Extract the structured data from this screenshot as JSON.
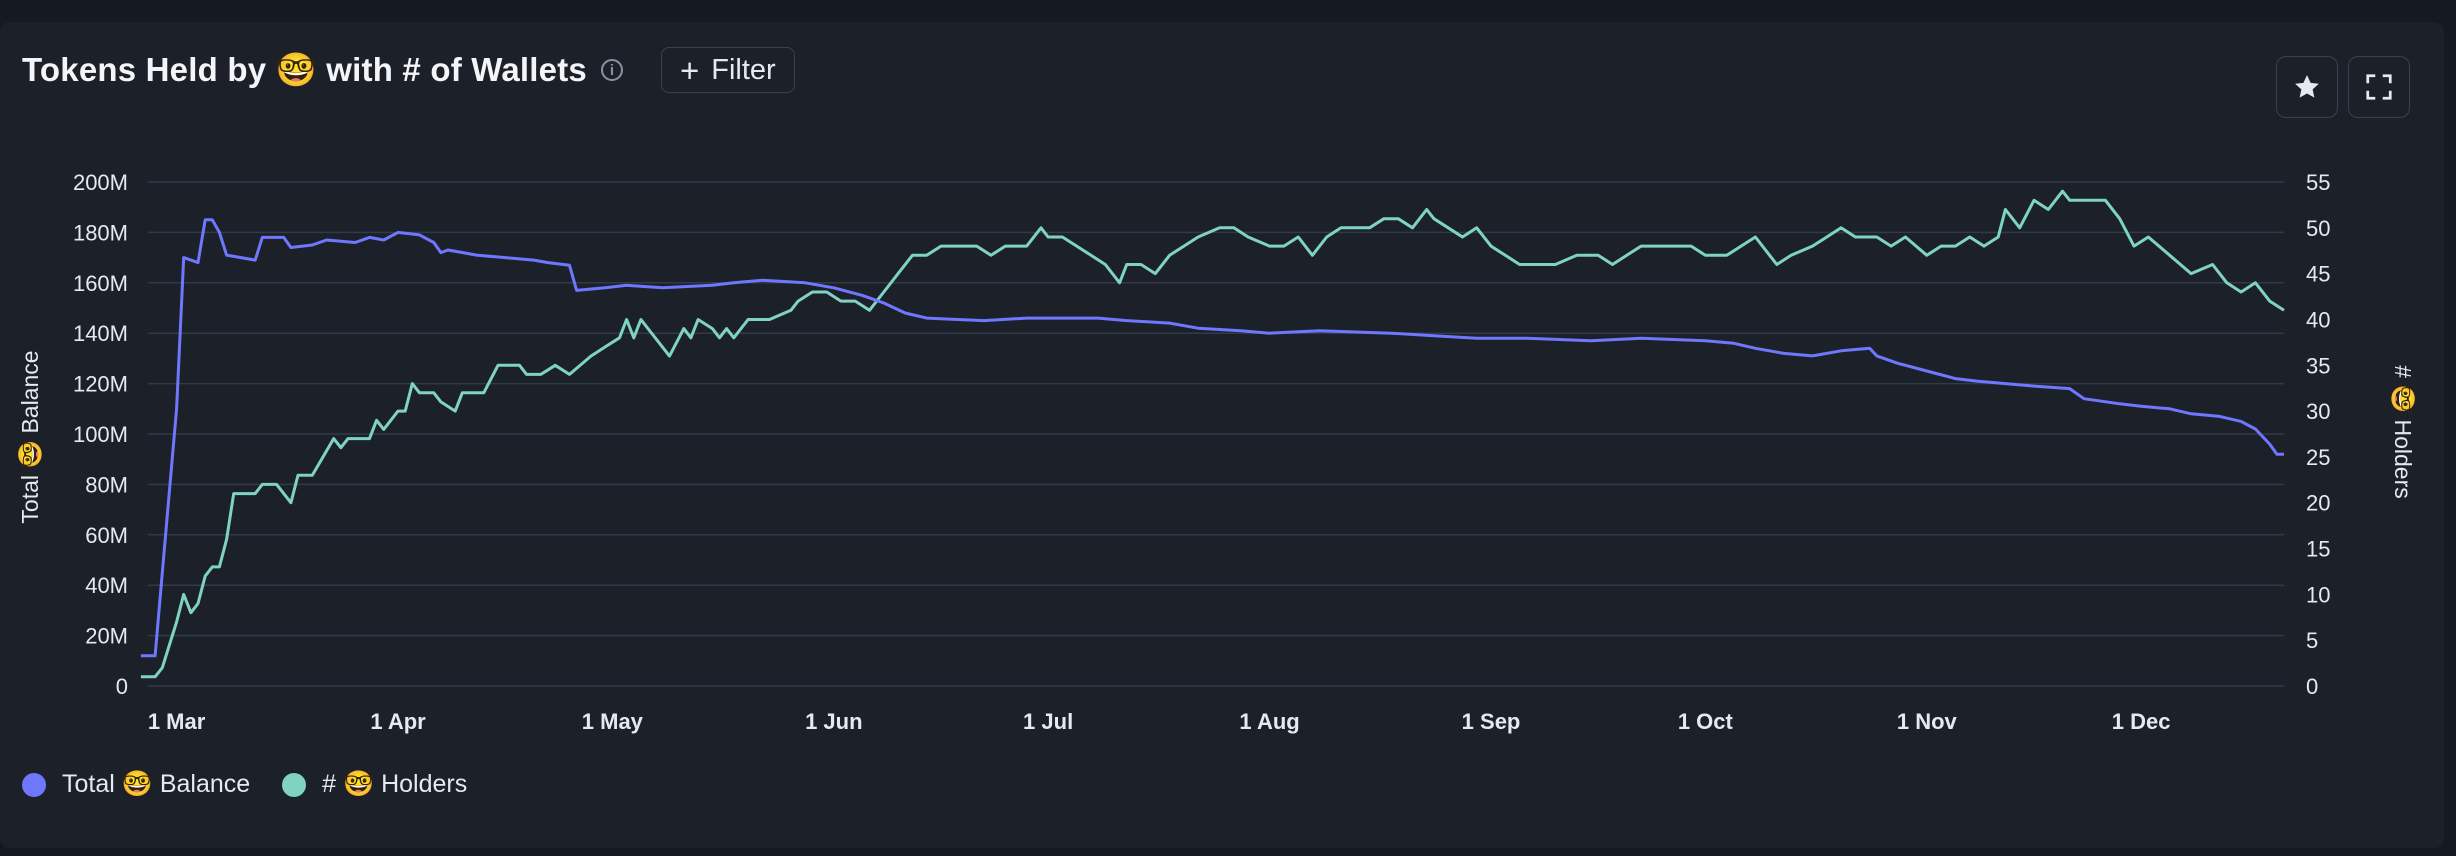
{
  "header": {
    "title": "Tokens Held by 🤓 with # of Wallets",
    "info_glyph": "i",
    "filter_label": "Filter",
    "filter_icon": "plus-icon"
  },
  "toolbar": {
    "favorite_icon": "star-icon",
    "expand_icon": "fullscreen-icon"
  },
  "colors": {
    "balance": "#7077ff",
    "holders": "#7fd3c1",
    "grid": "#323947",
    "background": "#1c2129"
  },
  "legend": {
    "balance_label": "Total 🤓 Balance",
    "holders_label": "# 🤓 Holders"
  },
  "chart_data": {
    "type": "line",
    "title": "Tokens Held by 🤓 with # of Wallets",
    "ylabel_left": "Total 🤓 Balance",
    "ylabel_right": "# 🤓 Holders",
    "x_ticks": [
      "1 Mar",
      "1 Apr",
      "1 May",
      "1 Jun",
      "1 Jul",
      "1 Aug",
      "1 Sep",
      "1 Oct",
      "1 Nov",
      "1 Dec"
    ],
    "y_left_ticks": [
      "0",
      "20M",
      "40M",
      "60M",
      "80M",
      "100M",
      "120M",
      "140M",
      "160M",
      "180M",
      "200M"
    ],
    "y_right_ticks": [
      "0",
      "5",
      "10",
      "15",
      "20",
      "25",
      "30",
      "35",
      "40",
      "45",
      "50",
      "55"
    ],
    "ylim_left": [
      0,
      200000000
    ],
    "ylim_right": [
      0,
      55
    ],
    "grid": true,
    "legend_position": "bottom-left",
    "series": [
      {
        "name": "Total 🤓 Balance",
        "axis": "left",
        "points": [
          [
            "02-25",
            12
          ],
          [
            "02-27",
            12
          ],
          [
            "02-28",
            45
          ],
          [
            "03-01",
            110
          ],
          [
            "03-02",
            170
          ],
          [
            "03-04",
            168
          ],
          [
            "03-05",
            185
          ],
          [
            "03-06",
            185
          ],
          [
            "03-07",
            180
          ],
          [
            "03-08",
            171
          ],
          [
            "03-12",
            169
          ],
          [
            "03-13",
            178
          ],
          [
            "03-16",
            178
          ],
          [
            "03-17",
            174
          ],
          [
            "03-20",
            175
          ],
          [
            "03-22",
            177
          ],
          [
            "03-26",
            176
          ],
          [
            "03-28",
            178
          ],
          [
            "03-30",
            177
          ],
          [
            "04-01",
            180
          ],
          [
            "04-04",
            179
          ],
          [
            "04-06",
            176
          ],
          [
            "04-07",
            172
          ],
          [
            "04-08",
            173
          ],
          [
            "04-12",
            171
          ],
          [
            "04-16",
            170
          ],
          [
            "04-20",
            169
          ],
          [
            "04-22",
            168
          ],
          [
            "04-25",
            167
          ],
          [
            "04-26",
            157
          ],
          [
            "04-30",
            158
          ],
          [
            "05-03",
            159
          ],
          [
            "05-08",
            158
          ],
          [
            "05-15",
            159
          ],
          [
            "05-18",
            160
          ],
          [
            "05-22",
            161
          ],
          [
            "05-28",
            160
          ],
          [
            "06-01",
            158
          ],
          [
            "06-05",
            155
          ],
          [
            "06-08",
            152
          ],
          [
            "06-11",
            148
          ],
          [
            "06-14",
            146
          ],
          [
            "06-22",
            145
          ],
          [
            "06-28",
            146
          ],
          [
            "07-08",
            146
          ],
          [
            "07-12",
            145
          ],
          [
            "07-18",
            144
          ],
          [
            "07-22",
            142
          ],
          [
            "07-28",
            141
          ],
          [
            "08-01",
            140
          ],
          [
            "08-08",
            141
          ],
          [
            "08-18",
            140
          ],
          [
            "08-24",
            139
          ],
          [
            "08-30",
            138
          ],
          [
            "09-06",
            138
          ],
          [
            "09-15",
            137
          ],
          [
            "09-22",
            138
          ],
          [
            "10-01",
            137
          ],
          [
            "10-05",
            136
          ],
          [
            "10-08",
            134
          ],
          [
            "10-12",
            132
          ],
          [
            "10-16",
            131
          ],
          [
            "10-20",
            133
          ],
          [
            "10-24",
            134
          ],
          [
            "10-25",
            131
          ],
          [
            "10-28",
            128
          ],
          [
            "11-01",
            125
          ],
          [
            "11-05",
            122
          ],
          [
            "11-08",
            121
          ],
          [
            "11-12",
            120
          ],
          [
            "11-16",
            119
          ],
          [
            "11-21",
            118
          ],
          [
            "11-23",
            114
          ],
          [
            "11-28",
            112
          ],
          [
            "12-01",
            111
          ],
          [
            "12-05",
            110
          ],
          [
            "12-08",
            108
          ],
          [
            "12-12",
            107
          ],
          [
            "12-15",
            105
          ],
          [
            "12-17",
            102
          ],
          [
            "12-19",
            96
          ],
          [
            "12-20",
            92
          ],
          [
            "12-21",
            92
          ]
        ]
      },
      {
        "name": "# 🤓 Holders",
        "axis": "right",
        "points": [
          [
            "02-25",
            1
          ],
          [
            "02-27",
            1
          ],
          [
            "02-28",
            2
          ],
          [
            "03-01",
            7
          ],
          [
            "03-02",
            10
          ],
          [
            "03-03",
            8
          ],
          [
            "03-04",
            9
          ],
          [
            "03-05",
            12
          ],
          [
            "03-06",
            13
          ],
          [
            "03-07",
            13
          ],
          [
            "03-08",
            16
          ],
          [
            "03-09",
            21
          ],
          [
            "03-12",
            21
          ],
          [
            "03-13",
            22
          ],
          [
            "03-15",
            22
          ],
          [
            "03-17",
            20
          ],
          [
            "03-18",
            23
          ],
          [
            "03-20",
            23
          ],
          [
            "03-23",
            27
          ],
          [
            "03-24",
            26
          ],
          [
            "03-25",
            27
          ],
          [
            "03-26",
            27
          ],
          [
            "03-28",
            27
          ],
          [
            "03-29",
            29
          ],
          [
            "03-30",
            28
          ],
          [
            "04-01",
            30
          ],
          [
            "04-02",
            30
          ],
          [
            "04-03",
            33
          ],
          [
            "04-04",
            32
          ],
          [
            "04-06",
            32
          ],
          [
            "04-07",
            31
          ],
          [
            "04-09",
            30
          ],
          [
            "04-10",
            32
          ],
          [
            "04-13",
            32
          ],
          [
            "04-15",
            35
          ],
          [
            "04-18",
            35
          ],
          [
            "04-19",
            34
          ],
          [
            "04-21",
            34
          ],
          [
            "04-23",
            35
          ],
          [
            "04-25",
            34
          ],
          [
            "04-28",
            36
          ],
          [
            "04-30",
            37
          ],
          [
            "05-02",
            38
          ],
          [
            "05-03",
            40
          ],
          [
            "05-04",
            38
          ],
          [
            "05-05",
            40
          ],
          [
            "05-09",
            36
          ],
          [
            "05-11",
            39
          ],
          [
            "05-12",
            38
          ],
          [
            "05-13",
            40
          ],
          [
            "05-15",
            39
          ],
          [
            "05-16",
            38
          ],
          [
            "05-17",
            39
          ],
          [
            "05-18",
            38
          ],
          [
            "05-20",
            40
          ],
          [
            "05-23",
            40
          ],
          [
            "05-26",
            41
          ],
          [
            "05-27",
            42
          ],
          [
            "05-29",
            43
          ],
          [
            "05-31",
            43
          ],
          [
            "06-02",
            42
          ],
          [
            "06-04",
            42
          ],
          [
            "06-06",
            41
          ],
          [
            "06-08",
            43
          ],
          [
            "06-10",
            45
          ],
          [
            "06-12",
            47
          ],
          [
            "06-14",
            47
          ],
          [
            "06-16",
            48
          ],
          [
            "06-19",
            48
          ],
          [
            "06-21",
            48
          ],
          [
            "06-23",
            47
          ],
          [
            "06-25",
            48
          ],
          [
            "06-28",
            48
          ],
          [
            "06-30",
            50
          ],
          [
            "07-01",
            49
          ],
          [
            "07-03",
            49
          ],
          [
            "07-05",
            48
          ],
          [
            "07-07",
            47
          ],
          [
            "07-09",
            46
          ],
          [
            "07-11",
            44
          ],
          [
            "07-12",
            46
          ],
          [
            "07-14",
            46
          ],
          [
            "07-16",
            45
          ],
          [
            "07-18",
            47
          ],
          [
            "07-20",
            48
          ],
          [
            "07-22",
            49
          ],
          [
            "07-25",
            50
          ],
          [
            "07-27",
            50
          ],
          [
            "07-29",
            49
          ],
          [
            "08-01",
            48
          ],
          [
            "08-03",
            48
          ],
          [
            "08-05",
            49
          ],
          [
            "08-07",
            47
          ],
          [
            "08-09",
            49
          ],
          [
            "08-11",
            50
          ],
          [
            "08-13",
            50
          ],
          [
            "08-15",
            50
          ],
          [
            "08-17",
            51
          ],
          [
            "08-19",
            51
          ],
          [
            "08-21",
            50
          ],
          [
            "08-23",
            52
          ],
          [
            "08-24",
            51
          ],
          [
            "08-26",
            50
          ],
          [
            "08-28",
            49
          ],
          [
            "08-30",
            50
          ],
          [
            "09-01",
            48
          ],
          [
            "09-03",
            47
          ],
          [
            "09-05",
            46
          ],
          [
            "09-07",
            46
          ],
          [
            "09-10",
            46
          ],
          [
            "09-13",
            47
          ],
          [
            "09-16",
            47
          ],
          [
            "09-18",
            46
          ],
          [
            "09-20",
            47
          ],
          [
            "09-22",
            48
          ],
          [
            "09-26",
            48
          ],
          [
            "09-29",
            48
          ],
          [
            "10-01",
            47
          ],
          [
            "10-04",
            47
          ],
          [
            "10-06",
            48
          ],
          [
            "10-08",
            49
          ],
          [
            "10-10",
            47
          ],
          [
            "10-11",
            46
          ],
          [
            "10-13",
            47
          ],
          [
            "10-16",
            48
          ],
          [
            "10-18",
            49
          ],
          [
            "10-20",
            50
          ],
          [
            "10-22",
            49
          ],
          [
            "10-25",
            49
          ],
          [
            "10-27",
            48
          ],
          [
            "10-29",
            49
          ],
          [
            "11-01",
            47
          ],
          [
            "11-03",
            48
          ],
          [
            "11-05",
            48
          ],
          [
            "11-07",
            49
          ],
          [
            "11-09",
            48
          ],
          [
            "11-11",
            49
          ],
          [
            "11-12",
            52
          ],
          [
            "11-14",
            50
          ],
          [
            "11-16",
            53
          ],
          [
            "11-18",
            52
          ],
          [
            "11-20",
            54
          ],
          [
            "11-21",
            53
          ],
          [
            "11-24",
            53
          ],
          [
            "11-26",
            53
          ],
          [
            "11-28",
            51
          ],
          [
            "11-30",
            48
          ],
          [
            "12-02",
            49
          ],
          [
            "12-05",
            47
          ],
          [
            "12-08",
            45
          ],
          [
            "12-11",
            46
          ],
          [
            "12-13",
            44
          ],
          [
            "12-15",
            43
          ],
          [
            "12-17",
            44
          ],
          [
            "12-19",
            42
          ],
          [
            "12-21",
            41
          ]
        ]
      }
    ]
  }
}
